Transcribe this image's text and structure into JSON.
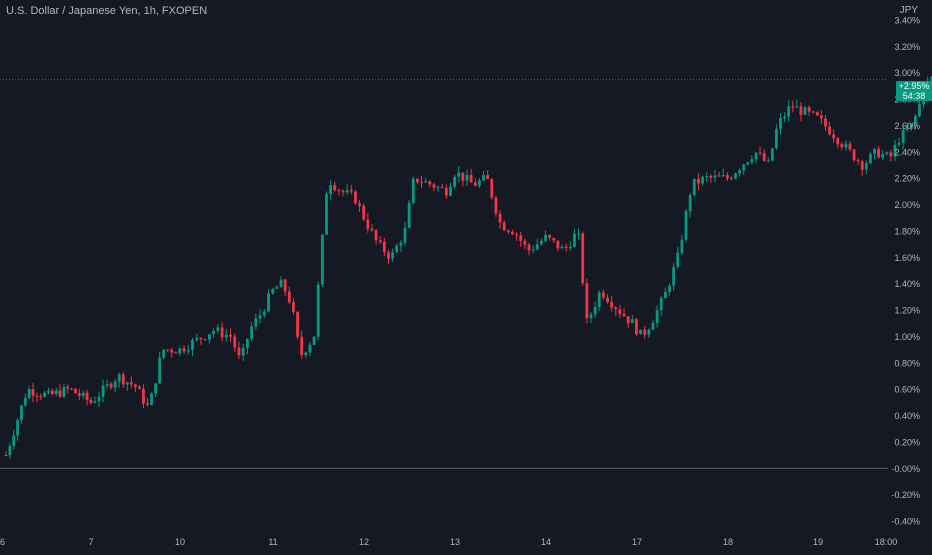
{
  "chart_data": {
    "type": "candlestick",
    "title": "U.S. Dollar / Japanese Yen, 1h, FXOPEN",
    "y_unit": "JPY",
    "ylim": [
      -0.4,
      3.4
    ],
    "y_ticks": [
      "3.40%",
      "3.20%",
      "3.00%",
      "2.80%",
      "2.60%",
      "2.40%",
      "2.20%",
      "2.00%",
      "1.80%",
      "1.60%",
      "1.40%",
      "1.20%",
      "1.00%",
      "0.80%",
      "0.60%",
      "0.40%",
      "0.20%",
      "-0.00%",
      "-0.20%",
      "-0.40%"
    ],
    "x_ticks": [
      "6",
      "7",
      "10",
      "11",
      "12",
      "13",
      "14",
      "17",
      "18",
      "19",
      "18:00"
    ],
    "last_value_label": "+2.95%",
    "last_value": 2.95,
    "countdown": "54:38",
    "colors": {
      "up": "#089981",
      "down": "#f23645",
      "background": "#151924",
      "text": "#b2b5be",
      "badge": "#089981"
    },
    "close_path": [
      [
        0.0,
        0.1
      ],
      [
        0.25,
        0.6
      ],
      [
        0.5,
        0.55
      ],
      [
        0.75,
        0.6
      ],
      [
        1.0,
        0.5
      ],
      [
        1.3,
        0.7
      ],
      [
        1.5,
        0.62
      ],
      [
        1.65,
        0.45
      ],
      [
        1.8,
        0.9
      ],
      [
        2.0,
        0.9
      ],
      [
        2.25,
        1.0
      ],
      [
        2.35,
        1.05
      ],
      [
        2.55,
        1.0
      ],
      [
        2.65,
        0.8
      ],
      [
        2.75,
        1.05
      ],
      [
        2.85,
        1.15
      ],
      [
        3.0,
        1.35
      ],
      [
        3.1,
        1.4
      ],
      [
        3.2,
        1.25
      ],
      [
        3.3,
        0.85
      ],
      [
        3.45,
        1.0
      ],
      [
        3.6,
        2.2
      ],
      [
        3.75,
        2.1
      ],
      [
        3.9,
        2.05
      ],
      [
        4.0,
        1.9
      ],
      [
        4.15,
        1.7
      ],
      [
        4.3,
        1.6
      ],
      [
        4.45,
        1.8
      ],
      [
        4.55,
        2.2
      ],
      [
        4.75,
        2.15
      ],
      [
        4.9,
        2.1
      ],
      [
        5.0,
        2.25
      ],
      [
        5.2,
        2.15
      ],
      [
        5.35,
        2.2
      ],
      [
        5.5,
        1.85
      ],
      [
        5.65,
        1.8
      ],
      [
        5.8,
        1.65
      ],
      [
        6.0,
        1.75
      ],
      [
        6.2,
        1.65
      ],
      [
        6.35,
        1.8
      ],
      [
        6.45,
        1.1
      ],
      [
        6.6,
        1.35
      ],
      [
        6.8,
        1.2
      ],
      [
        6.95,
        1.1
      ],
      [
        7.05,
        1.0
      ],
      [
        7.15,
        1.1
      ],
      [
        7.3,
        1.3
      ],
      [
        7.45,
        1.6
      ],
      [
        7.6,
        2.15
      ],
      [
        7.75,
        2.2
      ],
      [
        8.0,
        2.2
      ],
      [
        8.15,
        2.3
      ],
      [
        8.3,
        2.4
      ],
      [
        8.45,
        2.3
      ],
      [
        8.55,
        2.6
      ],
      [
        8.7,
        2.75
      ],
      [
        8.85,
        2.7
      ],
      [
        9.0,
        2.65
      ],
      [
        9.15,
        2.55
      ],
      [
        9.35,
        2.4
      ],
      [
        9.5,
        2.3
      ],
      [
        9.65,
        2.4
      ],
      [
        9.8,
        2.35
      ],
      [
        9.9,
        2.5
      ],
      [
        10.05,
        2.6
      ],
      [
        10.2,
        2.9
      ],
      [
        10.32,
        3.0
      ],
      [
        10.4,
        2.95
      ]
    ]
  }
}
